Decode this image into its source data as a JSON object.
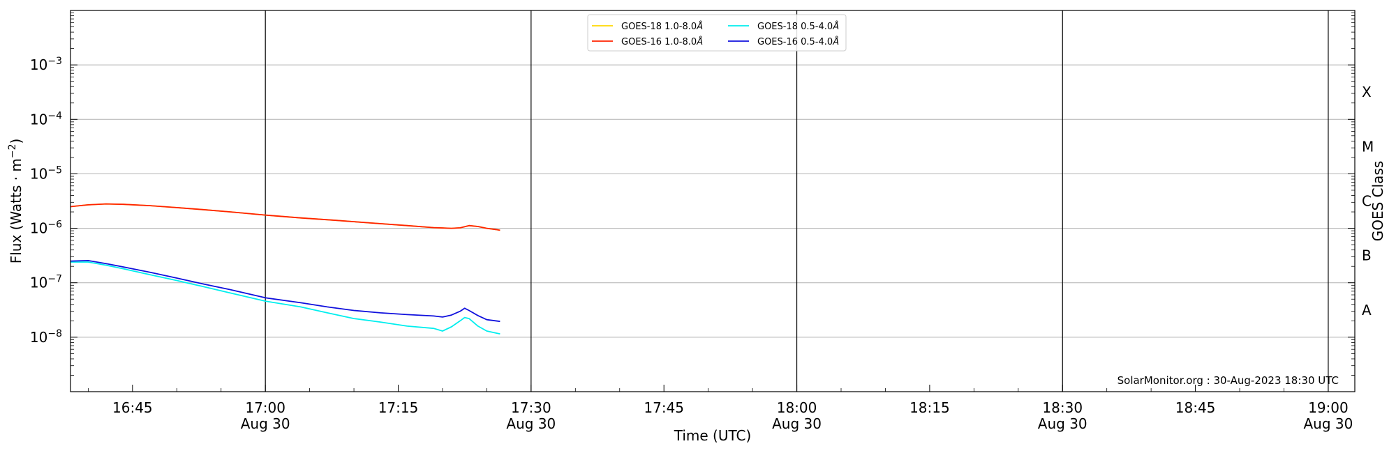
{
  "colors": {
    "goes18_long": "#ffd700",
    "goes16_long": "#ff2200",
    "goes18_short": "#00eeee",
    "goes16_short": "#1010dd",
    "grid": "#b0b0b0",
    "vline": "#000000"
  },
  "chart_data": {
    "type": "line",
    "title": "",
    "xlabel": "Time (UTC)",
    "ylabel_main": "Flux (Watts · m",
    "ylabel_sup": "−2",
    "ylabel_end": ")",
    "ylabel_right": "GOES Class",
    "credit": "SolarMonitor.org : 30-Aug-2023 18:30 UTC",
    "yscale": "log",
    "ylim": [
      1e-09,
      0.01
    ],
    "xlim": [
      "2023-08-30 16:38",
      "2023-08-30 19:03"
    ],
    "y_ticks": [
      {
        "value": 0.001,
        "base": "10",
        "exp": "−3"
      },
      {
        "value": 0.0001,
        "base": "10",
        "exp": "−4"
      },
      {
        "value": 1e-05,
        "base": "10",
        "exp": "−5"
      },
      {
        "value": 1e-06,
        "base": "10",
        "exp": "−6"
      },
      {
        "value": 1e-07,
        "base": "10",
        "exp": "−7"
      },
      {
        "value": 1e-08,
        "base": "10",
        "exp": "−8"
      }
    ],
    "x_ticks": [
      {
        "time": "2023-08-30 16:45",
        "label": "16:45",
        "date": ""
      },
      {
        "time": "2023-08-30 17:00",
        "label": "17:00",
        "date": "Aug 30"
      },
      {
        "time": "2023-08-30 17:15",
        "label": "17:15",
        "date": ""
      },
      {
        "time": "2023-08-30 17:30",
        "label": "17:30",
        "date": "Aug 30"
      },
      {
        "time": "2023-08-30 17:45",
        "label": "17:45",
        "date": ""
      },
      {
        "time": "2023-08-30 18:00",
        "label": "18:00",
        "date": "Aug 30"
      },
      {
        "time": "2023-08-30 18:15",
        "label": "18:15",
        "date": ""
      },
      {
        "time": "2023-08-30 18:30",
        "label": "18:30",
        "date": "Aug 30"
      },
      {
        "time": "2023-08-30 18:45",
        "label": "18:45",
        "date": ""
      },
      {
        "time": "2023-08-30 19:00",
        "label": "19:00",
        "date": "Aug 30"
      }
    ],
    "vertical_lines": [
      "2023-08-30 17:00",
      "2023-08-30 17:30",
      "2023-08-30 18:00",
      "2023-08-30 18:30",
      "2023-08-30 19:00"
    ],
    "goes_classes": [
      {
        "label": "X",
        "value": 0.000316
      },
      {
        "label": "M",
        "value": 3.16e-05
      },
      {
        "label": "C",
        "value": 3.16e-06
      },
      {
        "label": "B",
        "value": 3.16e-07
      },
      {
        "label": "A",
        "value": 3.16e-08
      }
    ],
    "legend_placement": "top-center",
    "grid": "horizontal",
    "series": [
      {
        "name": "GOES-18 1.0-8.0",
        "unit_suffix": "Å",
        "color_key": "goes18_long",
        "points": [
          [
            "2023-08-30 16:38",
            2.5e-06
          ],
          [
            "2023-08-30 16:40",
            2.7e-06
          ],
          [
            "2023-08-30 16:42",
            2.8e-06
          ],
          [
            "2023-08-30 16:44",
            2.75e-06
          ],
          [
            "2023-08-30 16:47",
            2.6e-06
          ],
          [
            "2023-08-30 16:50",
            2.4e-06
          ],
          [
            "2023-08-30 16:53",
            2.2e-06
          ],
          [
            "2023-08-30 16:56",
            2e-06
          ],
          [
            "2023-08-30 17:00",
            1.75e-06
          ],
          [
            "2023-08-30 17:04",
            1.55e-06
          ],
          [
            "2023-08-30 17:08",
            1.4e-06
          ],
          [
            "2023-08-30 17:12",
            1.25e-06
          ],
          [
            "2023-08-30 17:16",
            1.12e-06
          ],
          [
            "2023-08-30 17:19",
            1.03e-06
          ],
          [
            "2023-08-30 17:21",
            1e-06
          ],
          [
            "2023-08-30 17:22",
            1.02e-06
          ],
          [
            "2023-08-30 17:23",
            1.12e-06
          ],
          [
            "2023-08-30 17:24",
            1.08e-06
          ],
          [
            "2023-08-30 17:25",
            1e-06
          ],
          [
            "2023-08-30 17:26",
            9.5e-07
          ],
          [
            "2023-08-30 17:26:30",
            9.2e-07
          ]
        ]
      },
      {
        "name": "GOES-16 1.0-8.0",
        "unit_suffix": "Å",
        "color_key": "goes16_long",
        "points": [
          [
            "2023-08-30 16:38",
            2.5e-06
          ],
          [
            "2023-08-30 16:40",
            2.7e-06
          ],
          [
            "2023-08-30 16:42",
            2.8e-06
          ],
          [
            "2023-08-30 16:44",
            2.75e-06
          ],
          [
            "2023-08-30 16:47",
            2.6e-06
          ],
          [
            "2023-08-30 16:50",
            2.4e-06
          ],
          [
            "2023-08-30 16:53",
            2.2e-06
          ],
          [
            "2023-08-30 16:56",
            2e-06
          ],
          [
            "2023-08-30 17:00",
            1.75e-06
          ],
          [
            "2023-08-30 17:04",
            1.55e-06
          ],
          [
            "2023-08-30 17:08",
            1.4e-06
          ],
          [
            "2023-08-30 17:12",
            1.25e-06
          ],
          [
            "2023-08-30 17:16",
            1.12e-06
          ],
          [
            "2023-08-30 17:19",
            1.03e-06
          ],
          [
            "2023-08-30 17:21",
            1e-06
          ],
          [
            "2023-08-30 17:22",
            1.02e-06
          ],
          [
            "2023-08-30 17:23",
            1.12e-06
          ],
          [
            "2023-08-30 17:24",
            1.08e-06
          ],
          [
            "2023-08-30 17:25",
            1e-06
          ],
          [
            "2023-08-30 17:26",
            9.5e-07
          ],
          [
            "2023-08-30 17:26:30",
            9.2e-07
          ]
        ]
      },
      {
        "name": "GOES-18 0.5-4.0",
        "unit_suffix": "Å",
        "color_key": "goes18_short",
        "points": [
          [
            "2023-08-30 16:38",
            2.4e-07
          ],
          [
            "2023-08-30 16:40",
            2.4e-07
          ],
          [
            "2023-08-30 16:42",
            2.1e-07
          ],
          [
            "2023-08-30 16:44",
            1.8e-07
          ],
          [
            "2023-08-30 16:47",
            1.4e-07
          ],
          [
            "2023-08-30 16:50",
            1.1e-07
          ],
          [
            "2023-08-30 16:53",
            8.5e-08
          ],
          [
            "2023-08-30 16:56",
            6.5e-08
          ],
          [
            "2023-08-30 17:00",
            4.6e-08
          ],
          [
            "2023-08-30 17:04",
            3.6e-08
          ],
          [
            "2023-08-30 17:07",
            2.8e-08
          ],
          [
            "2023-08-30 17:10",
            2.2e-08
          ],
          [
            "2023-08-30 17:13",
            1.9e-08
          ],
          [
            "2023-08-30 17:16",
            1.6e-08
          ],
          [
            "2023-08-30 17:19",
            1.45e-08
          ],
          [
            "2023-08-30 17:20",
            1.3e-08
          ],
          [
            "2023-08-30 17:21",
            1.55e-08
          ],
          [
            "2023-08-30 17:22",
            2e-08
          ],
          [
            "2023-08-30 17:22:30",
            2.3e-08
          ],
          [
            "2023-08-30 17:23",
            2.2e-08
          ],
          [
            "2023-08-30 17:24",
            1.6e-08
          ],
          [
            "2023-08-30 17:25",
            1.3e-08
          ],
          [
            "2023-08-30 17:26:30",
            1.15e-08
          ]
        ]
      },
      {
        "name": "GOES-16 0.5-4.0",
        "unit_suffix": "Å",
        "color_key": "goes16_short",
        "points": [
          [
            "2023-08-30 16:38",
            2.5e-07
          ],
          [
            "2023-08-30 16:40",
            2.55e-07
          ],
          [
            "2023-08-30 16:42",
            2.25e-07
          ],
          [
            "2023-08-30 16:44",
            1.95e-07
          ],
          [
            "2023-08-30 16:47",
            1.55e-07
          ],
          [
            "2023-08-30 16:50",
            1.22e-07
          ],
          [
            "2023-08-30 16:53",
            9.5e-08
          ],
          [
            "2023-08-30 16:56",
            7.5e-08
          ],
          [
            "2023-08-30 17:00",
            5.3e-08
          ],
          [
            "2023-08-30 17:04",
            4.3e-08
          ],
          [
            "2023-08-30 17:07",
            3.6e-08
          ],
          [
            "2023-08-30 17:10",
            3.1e-08
          ],
          [
            "2023-08-30 17:13",
            2.8e-08
          ],
          [
            "2023-08-30 17:16",
            2.6e-08
          ],
          [
            "2023-08-30 17:19",
            2.45e-08
          ],
          [
            "2023-08-30 17:20",
            2.35e-08
          ],
          [
            "2023-08-30 17:21",
            2.55e-08
          ],
          [
            "2023-08-30 17:22",
            3e-08
          ],
          [
            "2023-08-30 17:22:30",
            3.4e-08
          ],
          [
            "2023-08-30 17:23",
            3.1e-08
          ],
          [
            "2023-08-30 17:24",
            2.5e-08
          ],
          [
            "2023-08-30 17:25",
            2.1e-08
          ],
          [
            "2023-08-30 17:26:30",
            1.95e-08
          ]
        ]
      }
    ]
  }
}
